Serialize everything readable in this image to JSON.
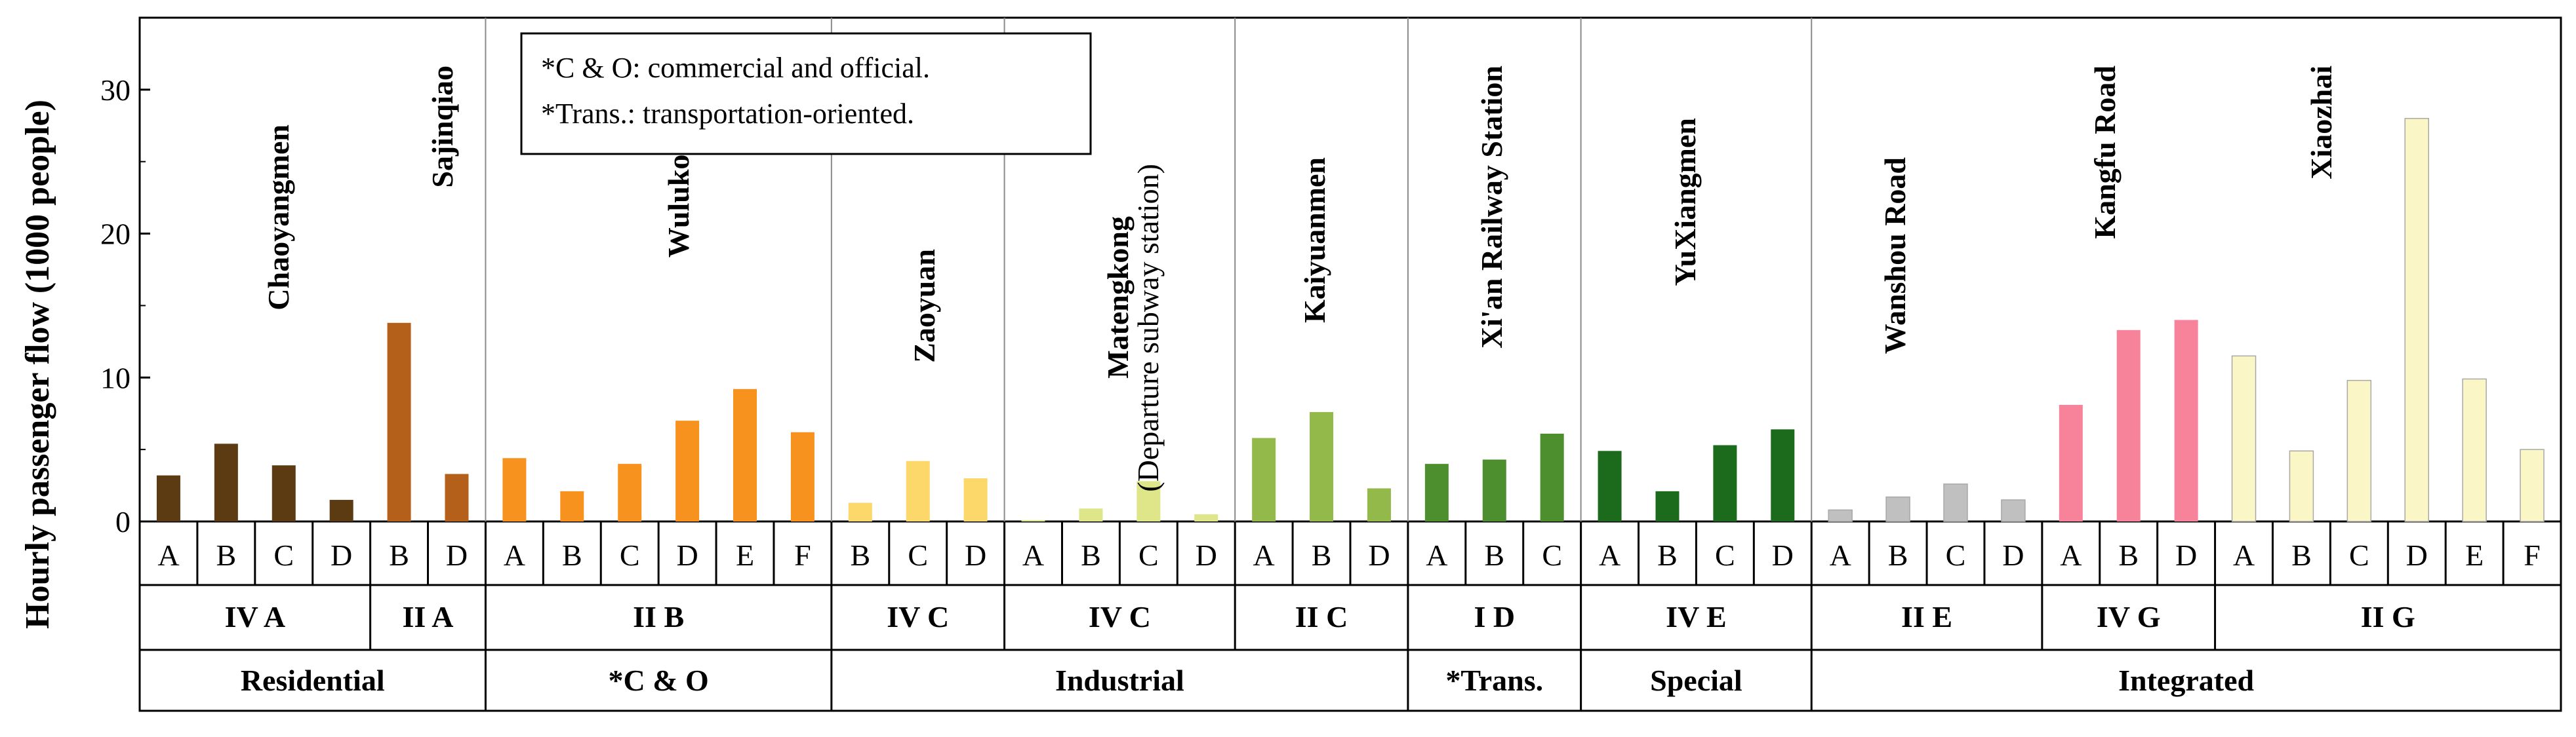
{
  "chart_data": {
    "type": "bar",
    "ylabel": "Hourly passenger flow (1000 people)",
    "ylim": [
      0,
      35
    ],
    "yticks": [
      "0",
      "10",
      "20",
      "30"
    ],
    "notes": [
      "*C & O: commercial and official.",
      "*Trans.: transportation-oriented."
    ],
    "stations": [
      {
        "name": "Chaoyangmen",
        "color": "#5c3a12",
        "categories": [
          "A",
          "B",
          "C",
          "D"
        ],
        "values": [
          3.2,
          5.4,
          3.9,
          1.5
        ]
      },
      {
        "name": "Sajinqiao",
        "color": "#b5601a",
        "categories": [
          "B",
          "D"
        ],
        "values": [
          13.8,
          3.3
        ]
      },
      {
        "name": "Wulukou",
        "color": "#f7921e",
        "categories": [
          "A",
          "B",
          "C",
          "D",
          "E",
          "F"
        ],
        "values": [
          4.4,
          2.1,
          4.0,
          7.0,
          9.2,
          6.2
        ]
      },
      {
        "name": "Zaoyuan",
        "color": "#fcd76a",
        "categories": [
          "B",
          "C",
          "D"
        ],
        "values": [
          1.3,
          4.2,
          3.0
        ]
      },
      {
        "name": "Matengkong",
        "subtitle": "(Departure subway station)",
        "color": "#dfe68a",
        "categories": [
          "A",
          "B",
          "C",
          "D"
        ],
        "values": [
          0.1,
          0.9,
          2.8,
          0.5
        ]
      },
      {
        "name": "Kaiyuanmen",
        "color": "#93b94a",
        "categories": [
          "A",
          "B",
          "D"
        ],
        "values": [
          5.8,
          7.6,
          2.3
        ]
      },
      {
        "name": "Xi'an Railway Station",
        "color": "#4d8f2e",
        "categories": [
          "A",
          "B",
          "C"
        ],
        "values": [
          4.0,
          4.3,
          6.1
        ]
      },
      {
        "name": "YuXiangmen",
        "color": "#1c6b1c",
        "categories": [
          "A",
          "B",
          "C",
          "D"
        ],
        "values": [
          4.9,
          2.1,
          5.3,
          6.4
        ]
      },
      {
        "name": "Wanshou Road",
        "color": "#c0c0c0",
        "categories": [
          "A",
          "B",
          "C",
          "D"
        ],
        "values": [
          0.8,
          1.7,
          2.6,
          1.5
        ]
      },
      {
        "name": "Kangfu Road",
        "color": "#f7839a",
        "categories": [
          "A",
          "B",
          "D"
        ],
        "values": [
          8.1,
          13.3,
          14.0
        ]
      },
      {
        "name": "Xiaozhai",
        "color": "#fbf6c5",
        "categories": [
          "A",
          "B",
          "C",
          "D",
          "E",
          "F"
        ],
        "values": [
          11.5,
          4.9,
          9.8,
          28.0,
          9.9,
          5.0
        ]
      }
    ],
    "subgroups": [
      {
        "label": "IV A",
        "span": 4
      },
      {
        "label": "II A",
        "span": 2
      },
      {
        "label": "II B",
        "span": 6
      },
      {
        "label": "IV  C",
        "span": 3
      },
      {
        "label": "IV C",
        "span": 4
      },
      {
        "label": "II C",
        "span": 3
      },
      {
        "label": "I D",
        "span": 3
      },
      {
        "label": "IV E",
        "span": 4
      },
      {
        "label": "II E",
        "span": 4
      },
      {
        "label": "IV G",
        "span": 3
      },
      {
        "label": "II G",
        "span": 6
      }
    ],
    "groups": [
      {
        "label": "Residential",
        "span": 6
      },
      {
        "label": "*C & O",
        "span": 6
      },
      {
        "label": "Industrial",
        "span": 10
      },
      {
        "label": "*Trans.",
        "span": 3
      },
      {
        "label": "Special",
        "span": 4
      },
      {
        "label": "Integrated",
        "span": 13
      }
    ]
  }
}
